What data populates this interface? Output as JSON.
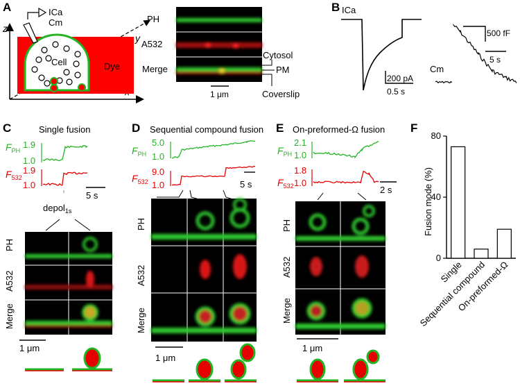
{
  "panels": {
    "A": {
      "letter": "A",
      "axis_z": "z",
      "axis_y": "y",
      "axis_x": "x",
      "ica": "ICa",
      "cm": "Cm",
      "cell": "Cell",
      "dye": "Dye",
      "row_labels": [
        "PH",
        "A532",
        "Merge"
      ],
      "cytosol": "Cytosol",
      "pm": "PM",
      "coverslip": "Coverslip",
      "scale": "1 μm"
    },
    "B": {
      "letter": "B",
      "ica": "ICa",
      "cm": "Cm",
      "ica_scale_y": "200 pA",
      "ica_scale_x": "0.5 s",
      "cm_scale_y": "500 fF",
      "cm_scale_x": "5 s"
    },
    "C": {
      "letter": "C",
      "title": "Single fusion",
      "f_ph": "F",
      "f_ph_sub": "PH",
      "f_532": "F",
      "f_532_sub": "532",
      "ph_ticks": [
        "1.9",
        "1.0"
      ],
      "a532_ticks": [
        "1.9",
        "1.0"
      ],
      "time_scale": "5 s",
      "depol": "depol",
      "depol_sub": "1s",
      "row_labels": [
        "PH",
        "A532",
        "Merge"
      ],
      "scale": "1 μm"
    },
    "D": {
      "letter": "D",
      "title": "Sequential compound fusion",
      "f_ph": "F",
      "f_ph_sub": "PH",
      "f_532": "F",
      "f_532_sub": "532",
      "ph_ticks": [
        "5.0",
        "1.0"
      ],
      "a532_ticks": [
        "9.0",
        "1.0"
      ],
      "time_scale": "5 s",
      "row_labels": [
        "PH",
        "A532",
        "Merge"
      ],
      "scale": "1 μm"
    },
    "E": {
      "letter": "E",
      "title": "On-preformed-Ω fusion",
      "f_ph": "F",
      "f_ph_sub": "PH",
      "f_532": "F",
      "f_532_sub": "532",
      "ph_ticks": [
        "2.1",
        "1.0"
      ],
      "a532_ticks": [
        "1.8",
        "1.0"
      ],
      "time_scale": "2 s",
      "row_labels": [
        "PH",
        "A532",
        "Merge"
      ],
      "scale": "1 μm"
    },
    "F": {
      "letter": "F"
    }
  },
  "colors": {
    "green": "#22b422",
    "red": "#e60000",
    "panel_black": "#000000"
  },
  "chart_data": {
    "type": "bar",
    "categories": [
      "Single",
      "Sequential compound",
      "On-preformed-Ω"
    ],
    "values": [
      73,
      6,
      19
    ],
    "ylabel": "Fusion mode (%)",
    "ylim": [
      0,
      80
    ],
    "yticks": [
      "0",
      "40",
      "80"
    ]
  }
}
